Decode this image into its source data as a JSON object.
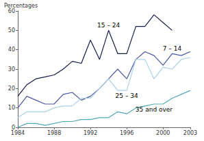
{
  "chart_data": {
    "type": "line",
    "y_label": "Percentages",
    "x": [
      1984,
      1985,
      1986,
      1987,
      1988,
      1989,
      1990,
      1991,
      1992,
      1993,
      1994,
      1995,
      1996,
      1997,
      1998,
      1999,
      2000,
      2001,
      2002,
      2003
    ],
    "series": [
      {
        "name": "15 – 24",
        "color": "#161a4a",
        "values": [
          16,
          22,
          25,
          26,
          27,
          30,
          34,
          33,
          45,
          35,
          50,
          38,
          38,
          52,
          52,
          58,
          54,
          50,
          null,
          null
        ]
      },
      {
        "name": "7 – 14",
        "color": "#4a56a6",
        "values": [
          10,
          16,
          14,
          12,
          12,
          17,
          18,
          14,
          16,
          20,
          25,
          30,
          25,
          35,
          39,
          37,
          32,
          38,
          37,
          39
        ]
      },
      {
        "name": "25 – 34",
        "color": "#a9d2e6",
        "values": [
          5,
          8,
          8,
          8,
          10,
          11,
          11,
          15,
          15,
          20,
          25,
          19,
          19,
          35,
          35,
          25,
          31,
          30,
          35,
          36
        ]
      },
      {
        "name": "35 and over",
        "color": "#52a9bb",
        "values": [
          0,
          2,
          2,
          1,
          2,
          3,
          3,
          4,
          4,
          5,
          5,
          8,
          7,
          10,
          11,
          12,
          12,
          15,
          17,
          19
        ]
      }
    ],
    "xlim": [
      1984,
      2003
    ],
    "xticks": [
      1984,
      1988,
      1992,
      1996,
      2000,
      2003
    ],
    "ylim": [
      0,
      60
    ],
    "yticks": [
      0,
      10,
      20,
      30,
      40,
      50,
      60
    ],
    "grid": false
  }
}
